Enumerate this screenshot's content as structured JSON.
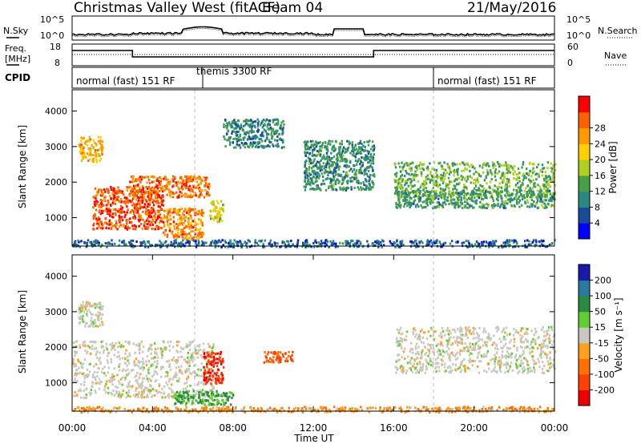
{
  "header": {
    "title": "Christmas Valley West (fitACF)",
    "beam": "Beam 04",
    "date": "21/May/2016"
  },
  "strip": {
    "nsky_label": "N.Sky",
    "nsearch_label": "N.Search",
    "nsky_ticks": [
      "10^5",
      "10^0"
    ],
    "nsearch_ticks": [
      "10^5",
      "10^0"
    ],
    "freq_label_1": "Freq.",
    "freq_label_2": "[MHz]",
    "freq_ticks": [
      "18",
      "8"
    ],
    "nave_label": "Nave",
    "nave_ticks": [
      "60",
      "0"
    ],
    "cpid_label": "CPID",
    "cpid_segments": [
      {
        "label": "normal (fast) 151 RF",
        "start_h": 0,
        "end_h": 6.5
      },
      {
        "label": "themis 3300 RF",
        "start_h": 6.5,
        "end_h": 18
      },
      {
        "label": "normal (fast) 151 RF",
        "start_h": 18,
        "end_h": 24
      }
    ]
  },
  "colors": {
    "power": [
      "#0000ff",
      "#1a4a9a",
      "#2a8a80",
      "#46a046",
      "#b0d020",
      "#ffd000",
      "#ff9a00",
      "#ff6000",
      "#ff0000"
    ],
    "velocity": [
      "#1a1aa8",
      "#2a7aa0",
      "#2a8a40",
      "#66cc33",
      "#c8c8c0",
      "#ffa020",
      "#ff7000",
      "#ff4000",
      "#ee0000"
    ]
  },
  "chart_data": [
    {
      "type": "heatmap",
      "quantity": "Power",
      "ylabel": "Slant Range [km]",
      "yticks": [
        "1000",
        "2000",
        "3000",
        "4000"
      ],
      "ylim": [
        200,
        4600
      ],
      "xlim": [
        0,
        24
      ],
      "colorbar_label": "Power [dB]",
      "colorbar_ticks": [
        "4",
        "8",
        "12",
        "16",
        "20",
        "24",
        "28"
      ],
      "regions": [
        {
          "t0": 1.0,
          "t1": 4.5,
          "r0": 700,
          "r1": 1900,
          "value": 27
        },
        {
          "t0": 2.8,
          "t1": 6.8,
          "r0": 1600,
          "r1": 2200,
          "value": 25
        },
        {
          "t0": 4.5,
          "t1": 6.5,
          "r0": 400,
          "r1": 1300,
          "value": 24
        },
        {
          "t0": 0.3,
          "t1": 1.5,
          "r0": 2600,
          "r1": 3300,
          "value": 21
        },
        {
          "t0": 6.8,
          "t1": 7.5,
          "r0": 900,
          "r1": 1500,
          "value": 18
        },
        {
          "t0": 16.0,
          "t1": 24.0,
          "r0": 1600,
          "r1": 2600,
          "value": 14
        },
        {
          "t0": 16.0,
          "t1": 24.0,
          "r0": 1300,
          "r1": 1800,
          "value": 12
        },
        {
          "t0": 7.5,
          "t1": 10.5,
          "r0": 3000,
          "r1": 3800,
          "value": 10
        },
        {
          "t0": 11.5,
          "t1": 15.0,
          "r0": 1800,
          "r1": 3200,
          "value": 11
        },
        {
          "t0": 0.0,
          "t1": 24.0,
          "r0": 200,
          "r1": 400,
          "value": 8
        }
      ]
    },
    {
      "type": "heatmap",
      "quantity": "Velocity",
      "ylabel": "Slant Range [km]",
      "yticks": [
        "1000",
        "2000",
        "3000",
        "4000"
      ],
      "ylim": [
        200,
        4600
      ],
      "xlim": [
        0,
        24
      ],
      "xlabel": "Time UT",
      "xticks": [
        "00:00",
        "04:00",
        "08:00",
        "12:00",
        "16:00",
        "20:00",
        "00:00"
      ],
      "colorbar_label": "Velocity [m s⁻¹]",
      "colorbar_ticks": [
        "200",
        "100",
        "50",
        "15",
        "-15",
        "-50",
        "-100",
        "-200"
      ],
      "regions": [
        {
          "t0": 0.0,
          "t1": 7.0,
          "r0": 600,
          "r1": 2200,
          "value": 0
        },
        {
          "t0": 0.3,
          "t1": 1.5,
          "r0": 2600,
          "r1": 3300,
          "value": 0
        },
        {
          "t0": 16.0,
          "t1": 24.0,
          "r0": 1300,
          "r1": 2600,
          "value": 0
        },
        {
          "t0": 6.5,
          "t1": 7.5,
          "r0": 1000,
          "r1": 1900,
          "value": -150
        },
        {
          "t0": 9.5,
          "t1": 11.0,
          "r0": 1600,
          "r1": 1900,
          "value": -80
        },
        {
          "t0": 5.0,
          "t1": 8.0,
          "r0": 400,
          "r1": 800,
          "value": 40
        },
        {
          "t0": 0.0,
          "t1": 24.0,
          "r0": 200,
          "r1": 350,
          "value": -30
        }
      ]
    }
  ]
}
